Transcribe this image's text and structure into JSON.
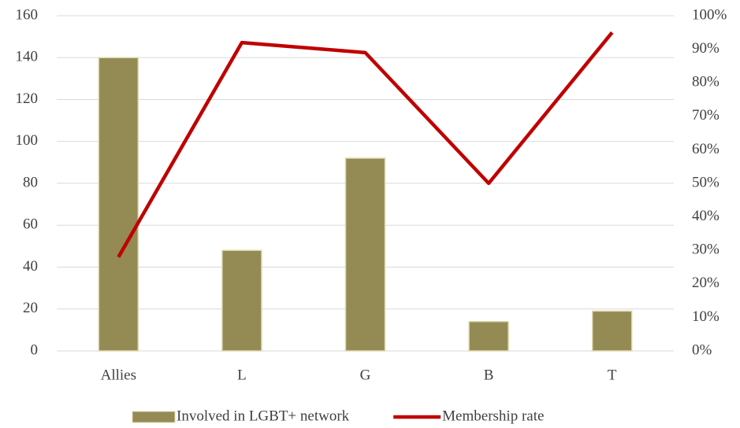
{
  "chart_data": {
    "type": "bar",
    "categories": [
      "Allies",
      "L",
      "G",
      "B",
      "T"
    ],
    "series": [
      {
        "name": "Involved in LGBT+ network",
        "type": "bar",
        "color": "#948a54",
        "values": [
          140,
          48,
          92,
          14,
          19
        ]
      },
      {
        "name": "Membership rate",
        "type": "line",
        "axis": "y2",
        "color": "#c00000",
        "values": [
          28,
          92,
          89,
          50,
          95
        ]
      }
    ],
    "ylim": [
      0,
      160
    ],
    "yticks": [
      0,
      20,
      40,
      60,
      80,
      100,
      120,
      140,
      160
    ],
    "y2lim": [
      0,
      100
    ],
    "y2ticks": [
      {
        "value": 0,
        "label": "0%"
      },
      {
        "value": 10,
        "label": "10%"
      },
      {
        "value": 20,
        "label": "20%"
      },
      {
        "value": 30,
        "label": "30%"
      },
      {
        "value": 40,
        "label": "40%"
      },
      {
        "value": 50,
        "label": "50%"
      },
      {
        "value": 60,
        "label": "60%"
      },
      {
        "value": 70,
        "label": "70%"
      },
      {
        "value": 80,
        "label": "80%"
      },
      {
        "value": 90,
        "label": "90%"
      },
      {
        "value": 100,
        "label": "100%"
      }
    ],
    "grid": true,
    "legend": "bottom"
  }
}
